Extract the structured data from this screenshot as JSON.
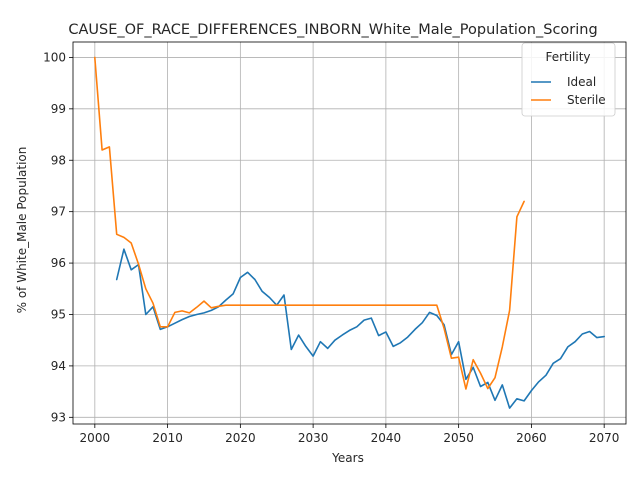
{
  "chart_data": {
    "type": "line",
    "title": "CAUSE_OF_RACE_DIFFERENCES_INBORN_White_Male_Population_Scoring",
    "xlabel": "Years",
    "ylabel": "% of White_Male Population",
    "xlim": [
      1997,
      2073
    ],
    "ylim": [
      92.87,
      100.3
    ],
    "xticks": [
      2000,
      2010,
      2020,
      2030,
      2040,
      2050,
      2060,
      2070
    ],
    "yticks": [
      93,
      94,
      95,
      96,
      97,
      98,
      99,
      100
    ],
    "grid": true,
    "legend": {
      "title": "Fertility",
      "placement": "top-right"
    },
    "series": [
      {
        "name": "Ideal",
        "color": "#1f77b4",
        "x": [
          2003,
          2004,
          2005,
          2006,
          2007,
          2008,
          2009,
          2010,
          2011,
          2012,
          2013,
          2014,
          2015,
          2016,
          2017,
          2018,
          2019,
          2020,
          2021,
          2022,
          2023,
          2024,
          2025,
          2026,
          2027,
          2028,
          2029,
          2030,
          2031,
          2032,
          2033,
          2034,
          2035,
          2036,
          2037,
          2038,
          2039,
          2040,
          2041,
          2042,
          2043,
          2044,
          2045,
          2046,
          2047,
          2048,
          2049,
          2050,
          2051,
          2052,
          2053,
          2054,
          2055,
          2056,
          2057,
          2058,
          2059,
          2060,
          2061,
          2062,
          2063,
          2064,
          2065,
          2066,
          2067,
          2068,
          2069,
          2070
        ],
        "y": [
          95.68,
          96.27,
          95.87,
          95.97,
          95.0,
          95.15,
          94.71,
          94.76,
          94.83,
          94.9,
          94.96,
          95.0,
          95.03,
          95.08,
          95.15,
          95.28,
          95.4,
          95.72,
          95.82,
          95.68,
          95.45,
          95.33,
          95.18,
          95.38,
          94.32,
          94.6,
          94.38,
          94.19,
          94.47,
          94.34,
          94.5,
          94.6,
          94.69,
          94.76,
          94.89,
          94.93,
          94.59,
          94.66,
          94.38,
          94.45,
          94.56,
          94.71,
          94.84,
          95.04,
          94.98,
          94.8,
          94.22,
          94.47,
          93.74,
          93.97,
          93.6,
          93.68,
          93.33,
          93.63,
          93.18,
          93.36,
          93.32,
          93.52,
          93.69,
          93.82,
          94.05,
          94.14,
          94.37,
          94.47,
          94.62,
          94.67,
          94.55,
          94.57
        ]
      },
      {
        "name": "Sterile",
        "color": "#ff7f0e",
        "x": [
          2000,
          2001,
          2002,
          2003,
          2004,
          2005,
          2006,
          2007,
          2008,
          2009,
          2010,
          2011,
          2012,
          2013,
          2014,
          2015,
          2016,
          2017,
          2018,
          2019,
          2020,
          2021,
          2022,
          2023,
          2024,
          2025,
          2026,
          2027,
          2028,
          2029,
          2030,
          2031,
          2032,
          2033,
          2034,
          2035,
          2036,
          2037,
          2038,
          2039,
          2040,
          2041,
          2042,
          2043,
          2044,
          2045,
          2046,
          2047,
          2048,
          2049,
          2050,
          2051,
          2052,
          2053,
          2054,
          2055,
          2056,
          2057,
          2058,
          2059
        ],
        "y": [
          100.0,
          98.2,
          98.26,
          96.56,
          96.5,
          96.39,
          95.98,
          95.5,
          95.22,
          94.76,
          94.76,
          95.04,
          95.07,
          95.03,
          95.14,
          95.26,
          95.13,
          95.16,
          95.18,
          95.18,
          95.18,
          95.18,
          95.18,
          95.18,
          95.18,
          95.18,
          95.18,
          95.18,
          95.18,
          95.18,
          95.18,
          95.18,
          95.18,
          95.18,
          95.18,
          95.18,
          95.18,
          95.18,
          95.18,
          95.18,
          95.18,
          95.18,
          95.18,
          95.18,
          95.18,
          95.18,
          95.18,
          95.18,
          94.73,
          94.15,
          94.17,
          93.55,
          94.12,
          93.86,
          93.56,
          93.77,
          94.37,
          95.08,
          96.9,
          97.2
        ]
      }
    ]
  }
}
